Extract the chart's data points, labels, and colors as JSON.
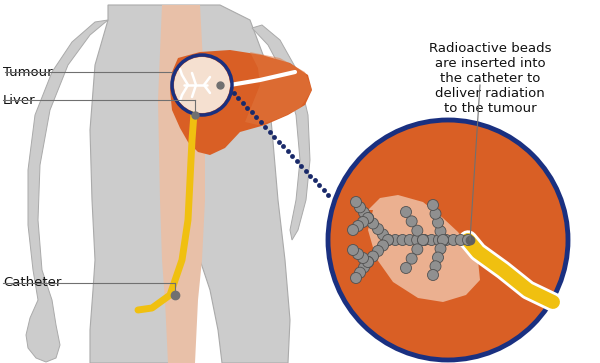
{
  "bg_color": "#ffffff",
  "body_color": "#cccccc",
  "body_inner_color": "#e8c0a8",
  "liver_color": "#d95f25",
  "liver_highlight": "#e07840",
  "tumour_circle_color": "#1a3080",
  "catheter_color": "#f0c010",
  "dotted_line_color": "#1a2a6a",
  "big_circle_bg": "#d95f25",
  "big_circle_border": "#1a3080",
  "tumour_inner_color": "#ebb090",
  "bead_color": "#909090",
  "bead_border": "#505050",
  "vessel_color": "#ffffff",
  "annotation_line_color": "#707070",
  "text_color": "#111111",
  "label_tumour": "Tumour",
  "label_liver": "Liver",
  "label_catheter": "Catheter",
  "label_radioactive": "Radioactive beads\nare inserted into\nthe catheter to\ndeliver radiation\nto the tumour",
  "figsize": [
    6.0,
    3.63
  ],
  "dpi": 100
}
